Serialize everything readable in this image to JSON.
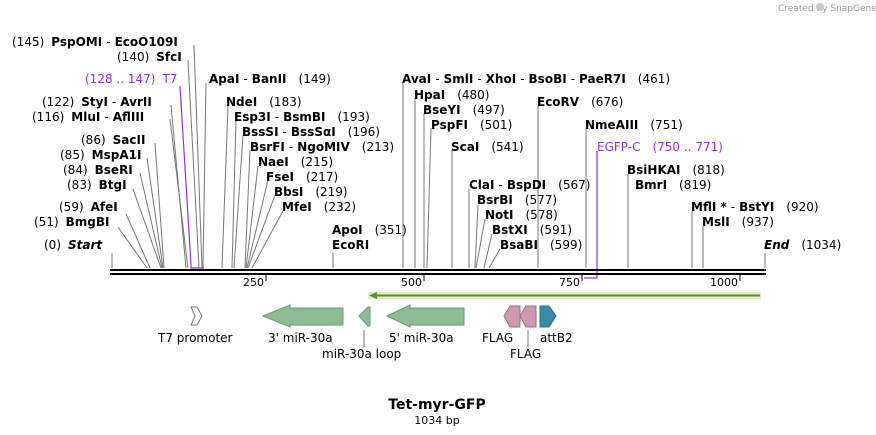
{
  "watermark": "Created by SnapGene",
  "map": {
    "title": "Tet-myr-GFP",
    "length_label": "1034 bp",
    "ruler_ticks": [
      "250",
      "500",
      "750",
      "1000"
    ]
  },
  "sites": {
    "psp": {
      "pos": "(145)",
      "name": "PspOMI",
      "alt": "EcoO109I"
    },
    "sfc": {
      "pos": "(140)",
      "name": "SfcI"
    },
    "t7": {
      "pos": "(128 .. 147)",
      "name": "T7"
    },
    "apa": {
      "name": "ApaI",
      "alt": "BanII",
      "pos": "(149)"
    },
    "sty": {
      "pos": "(122)",
      "name": "StyI",
      "alt": "AvrII"
    },
    "mlu": {
      "pos": "(116)",
      "name": "MluI",
      "alt": "AflIII"
    },
    "nde": {
      "name": "NdeI",
      "pos": "(183)"
    },
    "esp": {
      "name": "Esp3I",
      "alt": "BsmBI",
      "pos": "(193)"
    },
    "bss": {
      "name": "BssSI",
      "alt": "BssSαI",
      "pos": "(196)"
    },
    "sac": {
      "pos": "(86)",
      "name": "SacII"
    },
    "bsr": {
      "name": "BsrFI",
      "alt": "NgoMIV",
      "pos": "(213)"
    },
    "msp": {
      "pos": "(85)",
      "name": "MspA1I"
    },
    "nae": {
      "name": "NaeI",
      "pos": "(215)"
    },
    "bse": {
      "pos": "(84)",
      "name": "BseRI"
    },
    "fse": {
      "name": "FseI",
      "pos": "(217)"
    },
    "btg": {
      "pos": "(83)",
      "name": "BtgI"
    },
    "bbs": {
      "name": "BbsI",
      "pos": "(219)"
    },
    "mfe": {
      "name": "MfeI",
      "pos": "(232)"
    },
    "afe": {
      "pos": "(59)",
      "name": "AfeI"
    },
    "bmg": {
      "pos": "(51)",
      "name": "BmgBI"
    },
    "apo": {
      "name": "ApoI",
      "pos": "(351)"
    },
    "ecori": {
      "name": "EcoRI"
    },
    "start": {
      "pos": "(0)",
      "name": "Start"
    },
    "ava": {
      "name": "AvaI",
      "alt": "SmlI",
      "alt2": "XhoI",
      "alt3": "BsoBI",
      "alt4": "PaeR7I",
      "pos": "(461)"
    },
    "hpa": {
      "name": "HpaI",
      "pos": "(480)"
    },
    "bsey": {
      "name": "BseYI",
      "pos": "(497)"
    },
    "pspf": {
      "name": "PspFI",
      "pos": "(501)"
    },
    "sca": {
      "name": "ScaI",
      "pos": "(541)"
    },
    "ecorv": {
      "name": "EcoRV",
      "pos": "(676)"
    },
    "nme": {
      "name": "NmeAIII",
      "pos": "(751)"
    },
    "egfp": {
      "name": "EGFP-C",
      "pos": "(750 .. 771)"
    },
    "cla": {
      "name": "ClaI",
      "alt": "BspDI",
      "pos": "(567)"
    },
    "bsrb": {
      "name": "BsrBI",
      "pos": "(577)"
    },
    "not": {
      "name": "NotI",
      "pos": "(578)"
    },
    "bstx": {
      "name": "BstXI",
      "pos": "(591)"
    },
    "bsab": {
      "name": "BsaBI",
      "pos": "(599)"
    },
    "bsih": {
      "name": "BsiHKAI",
      "pos": "(818)"
    },
    "bmr": {
      "name": "BmrI",
      "pos": "(819)"
    },
    "mfl": {
      "name": "MflI *",
      "alt": "BstYI",
      "pos": "(920)"
    },
    "msl": {
      "name": "MslI",
      "pos": "(937)"
    },
    "end": {
      "name": "End",
      "pos": "(1034)"
    }
  },
  "features": {
    "t7_promoter": "T7 promoter",
    "mir3": "3' miR-30a",
    "mirloop": "miR-30a loop",
    "mir5": "5' miR-30a",
    "flag1": "FLAG",
    "flag2": "FLAG",
    "attb2": "attB2"
  }
}
